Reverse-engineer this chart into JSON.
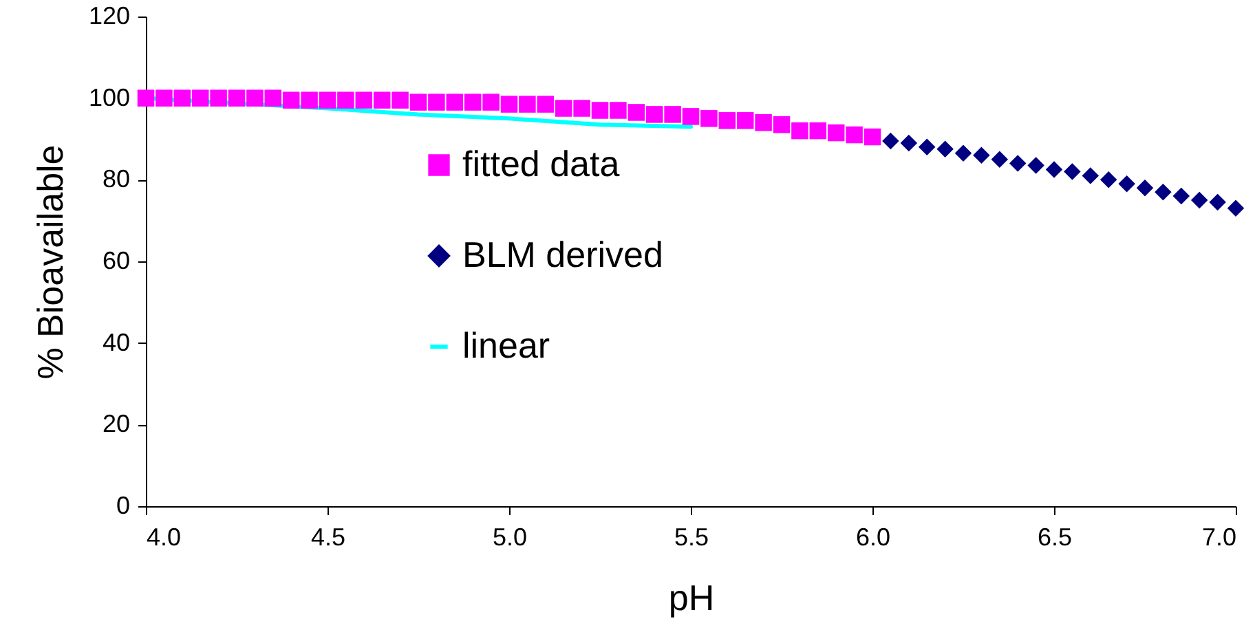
{
  "chart_data": {
    "type": "scatter",
    "xlabel": "pH",
    "ylabel": "% Bioavailable",
    "xlim": [
      4,
      7
    ],
    "xticks": [
      {
        "value": 4,
        "label": "4.0"
      },
      4.5,
      {
        "value": 5,
        "label": "5.0"
      },
      5.5,
      {
        "value": 6,
        "label": "6.0"
      },
      6.5,
      {
        "value": 7,
        "label": "7.0"
      }
    ],
    "ylim": [
      0,
      120
    ],
    "yticks": [
      0,
      20,
      40,
      60,
      80,
      100,
      120
    ],
    "grid": false,
    "legend": "center",
    "series": [
      {
        "name": "fitted data",
        "type": "scatter",
        "marker": "square",
        "color": "#ff00ff",
        "x": [
          4.0,
          4.05,
          4.1,
          4.15,
          4.2,
          4.25,
          4.3,
          4.35,
          4.4,
          4.45,
          4.5,
          4.55,
          4.6,
          4.65,
          4.7,
          4.75,
          4.8,
          4.85,
          4.9,
          4.95,
          5.0,
          5.05,
          5.1,
          5.15,
          5.2,
          5.25,
          5.3,
          5.35,
          5.4,
          5.45,
          5.5,
          5.55,
          5.6,
          5.65,
          5.7,
          5.75,
          5.8,
          5.85,
          5.9,
          5.95,
          6.0
        ],
        "values": [
          100,
          100,
          100,
          100,
          100,
          100,
          100,
          100,
          99.5,
          99.5,
          99.5,
          99.5,
          99.5,
          99.5,
          99.5,
          99,
          99,
          99,
          99,
          99,
          98.5,
          98.5,
          98.5,
          97.5,
          97.5,
          97,
          97,
          96.5,
          96,
          96,
          95.5,
          95,
          94.5,
          94.5,
          94,
          93.5,
          92,
          92,
          91.5,
          91,
          90.5
        ]
      },
      {
        "name": "BLM derived",
        "type": "scatter",
        "marker": "diamond",
        "color": "#000080",
        "x": [
          6.05,
          6.1,
          6.15,
          6.2,
          6.25,
          6.3,
          6.35,
          6.4,
          6.45,
          6.5,
          6.55,
          6.6,
          6.65,
          6.7,
          6.75,
          6.8,
          6.85,
          6.9,
          6.95,
          7.0
        ],
        "values": [
          89.5,
          89,
          88,
          87.5,
          86.5,
          86,
          85,
          84,
          83.5,
          82.5,
          82,
          81,
          80,
          79,
          78,
          77,
          76,
          75,
          74.5,
          73
        ]
      },
      {
        "name": "linear",
        "type": "line",
        "marker": "none",
        "color": "#00ffff",
        "x": [
          4.0,
          4.25,
          4.5,
          4.75,
          5.0,
          5.25,
          5.5
        ],
        "values": [
          100,
          null,
          97.5,
          96,
          95,
          93.5,
          93
        ]
      }
    ]
  }
}
